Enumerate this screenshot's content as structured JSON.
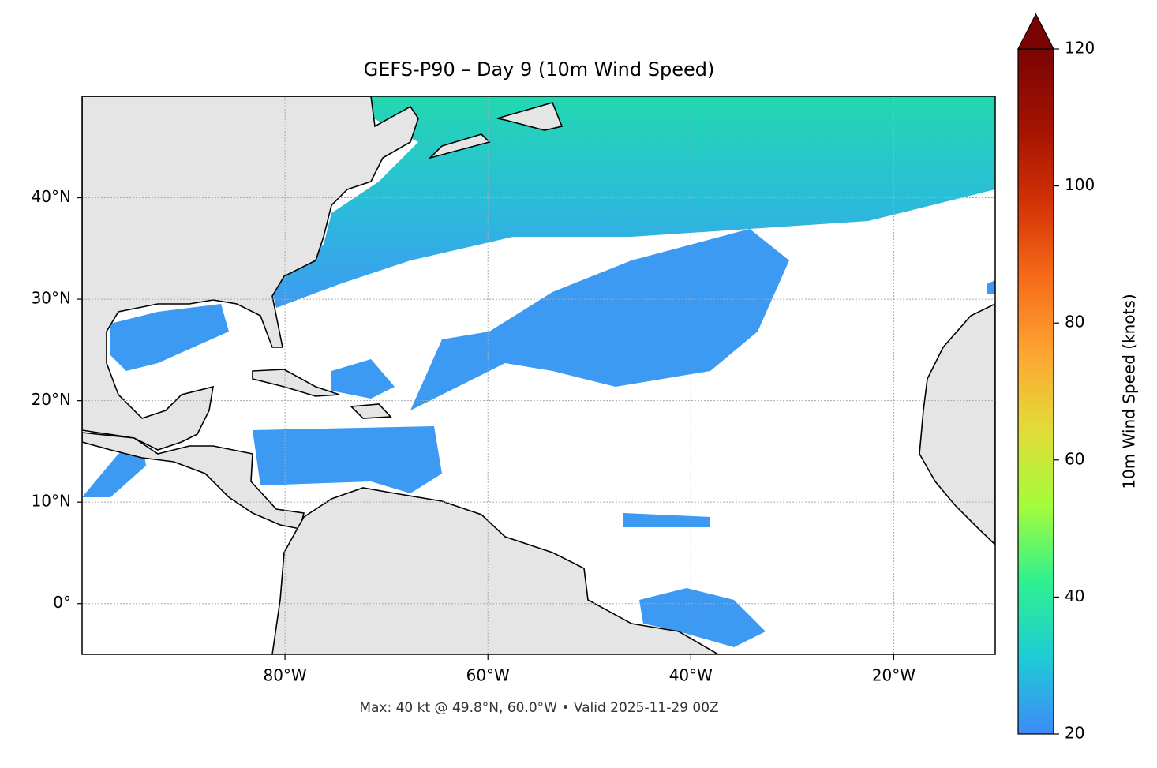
{
  "chart_data": {
    "type": "map",
    "title": "GEFS-P90 – Day 9 (10m Wind Speed)",
    "footnote": "Max: 40 kt @ 49.8°N, 60.0°W • Valid 2025-11-29 00Z",
    "xlim": [
      -100,
      -10
    ],
    "ylim": [
      -5,
      50
    ],
    "xticks": [
      {
        "value": -80,
        "label": "80°W"
      },
      {
        "value": -60,
        "label": "60°W"
      },
      {
        "value": -40,
        "label": "40°W"
      },
      {
        "value": -20,
        "label": "20°W"
      }
    ],
    "yticks": [
      {
        "value": 0,
        "label": "0°"
      },
      {
        "value": 10,
        "label": "10°N"
      },
      {
        "value": 20,
        "label": "20°N"
      },
      {
        "value": 30,
        "label": "30°N"
      },
      {
        "value": 40,
        "label": "40°N"
      }
    ],
    "grid": true,
    "colorbar": {
      "label": "10m Wind Speed (knots)",
      "lim": [
        20,
        120
      ],
      "ticks": [
        20,
        40,
        60,
        80,
        100,
        120
      ],
      "colors": [
        "#3e8af7",
        "#1ecbd6",
        "#2ff18f",
        "#a4fc3b",
        "#e2dc38",
        "#fea531",
        "#f66b19",
        "#d23105",
        "#a11201",
        "#7a0403"
      ]
    }
  }
}
